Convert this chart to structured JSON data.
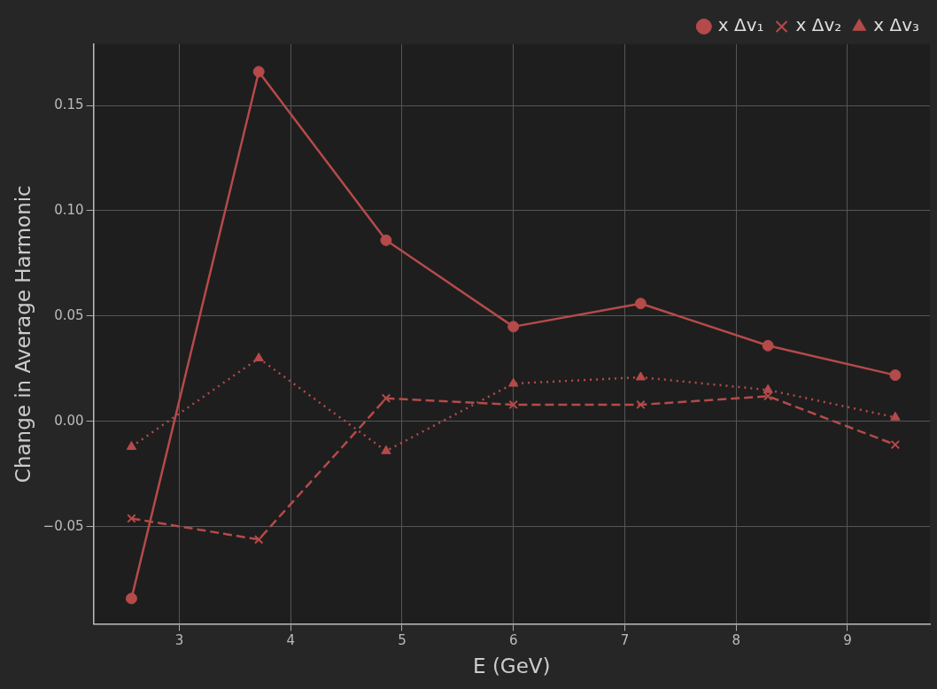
{
  "chart_data": {
    "type": "line",
    "xlabel": "E (GeV)",
    "ylabel": "Change in Average Harmonic",
    "x": [
      2.571,
      3.714,
      4.857,
      6.0,
      7.143,
      8.286,
      9.429
    ],
    "series": [
      {
        "name": "x Δv₁",
        "color": "#b54a4a",
        "marker": "circle",
        "line_style": "solid",
        "values": [
          -0.084,
          0.166,
          0.086,
          0.045,
          0.056,
          0.036,
          0.022
        ]
      },
      {
        "name": "x Δv₂",
        "color": "#b54a4a",
        "marker": "cross",
        "line_style": "dashed",
        "values": [
          -0.046,
          -0.056,
          0.011,
          0.008,
          0.008,
          0.012,
          -0.011
        ]
      },
      {
        "name": "x Δv₃",
        "color": "#b54a4a",
        "marker": "triangle",
        "line_style": "dotted",
        "values": [
          -0.012,
          0.03,
          -0.014,
          0.018,
          0.021,
          0.015,
          0.002
        ]
      }
    ],
    "xlim": [
      2.23,
      9.74
    ],
    "xticks": [
      3,
      4,
      5,
      6,
      7,
      8,
      9
    ],
    "ylim": [
      -0.096,
      0.179
    ],
    "yticks": [
      {
        "value": -0.05,
        "label": "−0.05"
      },
      {
        "value": 0,
        "label": "0.00"
      },
      {
        "value": 0.05,
        "label": "0.05"
      },
      {
        "value": 0.1,
        "label": "0.10"
      },
      {
        "value": 0.15,
        "label": "0.15"
      }
    ],
    "grid": true,
    "legend": "top right"
  }
}
